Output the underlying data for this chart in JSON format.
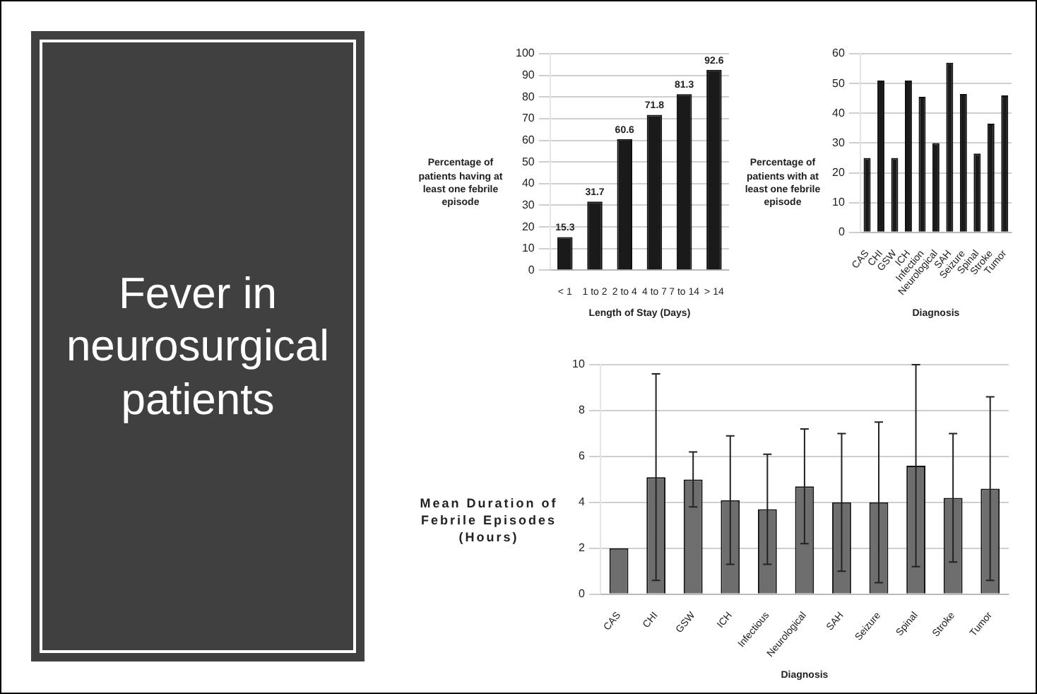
{
  "chart_data": [
    {
      "type": "other",
      "title": "Fever in neurosurgical patients"
    },
    {
      "type": "bar",
      "categories": [
        "< 1",
        "1 to 2",
        "2 to 4",
        "4 to 7",
        "7 to 14",
        "> 14"
      ],
      "values": [
        15.3,
        31.7,
        60.6,
        71.8,
        81.3,
        92.6
      ],
      "color": "#1a1a1a",
      "ylim": [
        0,
        100
      ],
      "yticks": [
        0,
        10,
        20,
        30,
        40,
        50,
        60,
        70,
        80,
        90,
        100
      ],
      "grid": "y",
      "data_labels": true,
      "xlabel": "Length of Stay (Days)",
      "ylabel": "Percentage of patients having at least one febrile episode"
    },
    {
      "type": "bar",
      "categories": [
        "CAS",
        "CHI",
        "GSW",
        "ICH",
        "Infection",
        "Neurological",
        "SAH",
        "Seizure",
        "Spinal",
        "Stroke",
        "Tumor"
      ],
      "values": [
        25,
        51,
        25,
        51,
        45.5,
        30,
        57,
        46.5,
        26.5,
        36.5,
        46
      ],
      "color": "#1a1a1a",
      "ylim": [
        0,
        60
      ],
      "yticks": [
        0,
        10,
        20,
        30,
        40,
        50,
        60
      ],
      "grid": "y",
      "xlabel": "Diagnosis",
      "ylabel": "Percentage of patients with at least one febrile episode"
    },
    {
      "type": "bar",
      "categories": [
        "CAS",
        "CHI",
        "GSW",
        "ICH",
        "Infectious",
        "Neurological",
        "SAH",
        "Seizure",
        "Spinal",
        "Stroke",
        "Tumor"
      ],
      "values": [
        2,
        5.1,
        5,
        4.1,
        3.7,
        4.7,
        4,
        4,
        5.6,
        4.2,
        4.6
      ],
      "errors": [
        null,
        [
          0.6,
          9.6
        ],
        [
          3.8,
          6.2
        ],
        [
          1.3,
          6.9
        ],
        [
          1.3,
          6.1
        ],
        [
          2.2,
          7.2
        ],
        [
          1,
          7
        ],
        [
          0.5,
          7.5
        ],
        [
          1.2,
          10
        ],
        [
          1.4,
          7
        ],
        [
          0.6,
          8.6
        ]
      ],
      "color": "#6e6e6e",
      "ylim": [
        0,
        10
      ],
      "yticks": [
        0,
        2,
        4,
        6,
        8,
        10
      ],
      "grid": "y",
      "xlabel": "Diagnosis",
      "ylabel": "Mean Duration of Febrile Episodes (Hours)"
    }
  ]
}
